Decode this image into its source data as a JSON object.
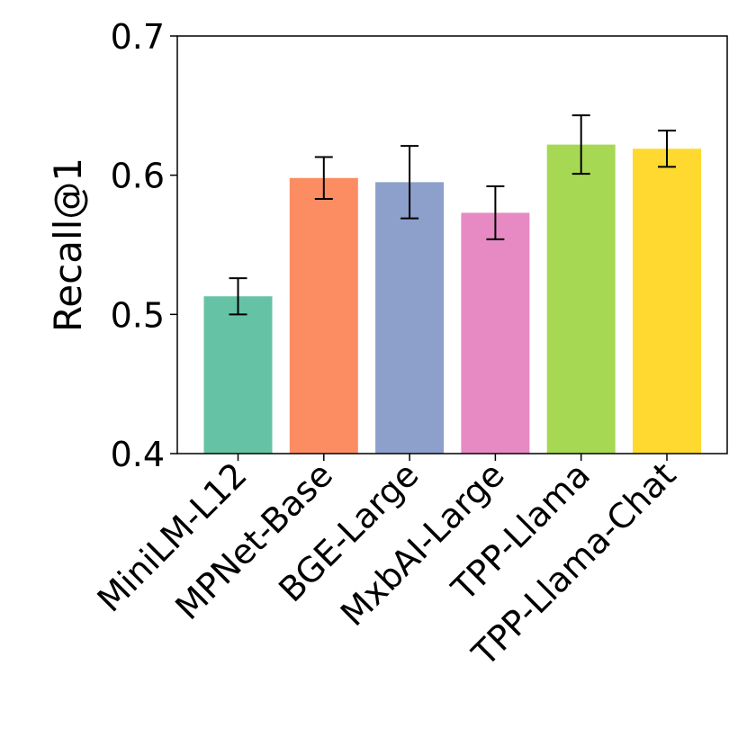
{
  "chart_data": {
    "type": "bar",
    "title": "",
    "xlabel": "",
    "ylabel": "Recall@1",
    "ylim": [
      0.4,
      0.7
    ],
    "yticks": [
      "0.4",
      "0.5",
      "0.6",
      "0.7"
    ],
    "grid": false,
    "categories": [
      "MiniLM-L12",
      "MPNet-Base",
      "BGE-Large",
      "MxbAI-Large",
      "TPP-Llama",
      "TPP-Llama-Chat"
    ],
    "values": [
      0.513,
      0.598,
      0.595,
      0.573,
      0.622,
      0.619
    ],
    "error_low": [
      0.5,
      0.583,
      0.569,
      0.554,
      0.601,
      0.606
    ],
    "error_high": [
      0.526,
      0.613,
      0.621,
      0.592,
      0.643,
      0.632
    ],
    "colors": [
      "#66c2a5",
      "#fc8d62",
      "#8da0cb",
      "#e78ac3",
      "#a6d854",
      "#ffd92f"
    ]
  }
}
